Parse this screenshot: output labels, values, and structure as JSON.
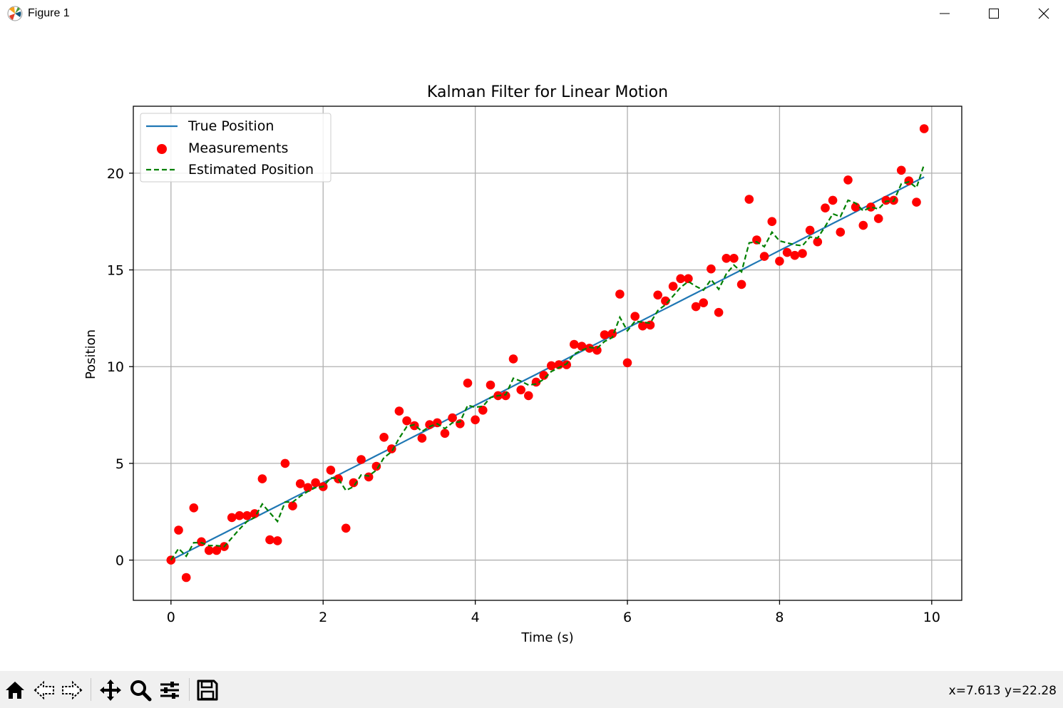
{
  "window": {
    "title": "Figure 1"
  },
  "toolbar": {
    "tools": [
      "home-icon",
      "back-icon",
      "forward-icon",
      "pan-icon",
      "zoom-icon",
      "configure-subplots-icon",
      "save-icon"
    ],
    "coords_readout": "x=7.613 y=22.28"
  },
  "colors": {
    "true_line": "#1f77b4",
    "measurements": "#ff0000",
    "estimate": "#008000",
    "grid": "#b0b0b0"
  },
  "chart_data": {
    "type": "line",
    "title": "Kalman Filter for Linear Motion",
    "xlabel": "Time (s)",
    "ylabel": "Position",
    "xlim": [
      -0.495,
      10.395
    ],
    "ylim": [
      -2.08,
      23.46
    ],
    "xticks": [
      0,
      2,
      4,
      6,
      8,
      10
    ],
    "yticks": [
      0,
      5,
      10,
      15,
      20
    ],
    "grid": true,
    "legend_position": "upper-left",
    "x": [
      0.0,
      0.1,
      0.2,
      0.3,
      0.4,
      0.5,
      0.6,
      0.7,
      0.8,
      0.9,
      1.0,
      1.1,
      1.2,
      1.3,
      1.4,
      1.5,
      1.6,
      1.7,
      1.8,
      1.9,
      2.0,
      2.1,
      2.2,
      2.3,
      2.4,
      2.5,
      2.6,
      2.7,
      2.8,
      2.9,
      3.0,
      3.1,
      3.2,
      3.3,
      3.4,
      3.5,
      3.6,
      3.7,
      3.8,
      3.9,
      4.0,
      4.1,
      4.2,
      4.3,
      4.4,
      4.5,
      4.6,
      4.7,
      4.8,
      4.9,
      5.0,
      5.1,
      5.2,
      5.3,
      5.4,
      5.5,
      5.6,
      5.7,
      5.8,
      5.9,
      6.0,
      6.1,
      6.2,
      6.3,
      6.4,
      6.5,
      6.6,
      6.7,
      6.8,
      6.9,
      7.0,
      7.1,
      7.2,
      7.3,
      7.4,
      7.5,
      7.6,
      7.7,
      7.8,
      7.9,
      8.0,
      8.1,
      8.2,
      8.3,
      8.4,
      8.5,
      8.6,
      8.7,
      8.8,
      8.9,
      9.0,
      9.1,
      9.2,
      9.3,
      9.4,
      9.5,
      9.6,
      9.7,
      9.8,
      9.9
    ],
    "series": [
      {
        "name": "True Position",
        "style": "solid",
        "values": [
          0.0,
          0.2,
          0.4,
          0.6,
          0.8,
          1.0,
          1.2,
          1.4,
          1.6,
          1.8,
          2.0,
          2.2,
          2.4,
          2.6,
          2.8,
          3.0,
          3.2,
          3.4,
          3.6,
          3.8,
          4.0,
          4.2,
          4.4,
          4.6,
          4.8,
          5.0,
          5.2,
          5.4,
          5.6,
          5.8,
          6.0,
          6.2,
          6.4,
          6.6,
          6.8,
          7.0,
          7.2,
          7.4,
          7.6,
          7.8,
          8.0,
          8.2,
          8.4,
          8.6,
          8.8,
          9.0,
          9.2,
          9.4,
          9.6,
          9.8,
          10.0,
          10.2,
          10.4,
          10.6,
          10.8,
          11.0,
          11.2,
          11.4,
          11.6,
          11.8,
          12.0,
          12.2,
          12.4,
          12.6,
          12.8,
          13.0,
          13.2,
          13.4,
          13.6,
          13.8,
          14.0,
          14.2,
          14.4,
          14.6,
          14.8,
          15.0,
          15.2,
          15.4,
          15.6,
          15.8,
          16.0,
          16.2,
          16.4,
          16.6,
          16.8,
          17.0,
          17.2,
          17.4,
          17.6,
          17.8,
          18.0,
          18.2,
          18.4,
          18.6,
          18.8,
          19.0,
          19.2,
          19.4,
          19.6,
          19.8
        ]
      },
      {
        "name": "Measurements",
        "style": "scatter",
        "values": [
          0.0,
          1.55,
          -0.9,
          2.7,
          0.95,
          0.5,
          0.5,
          0.7,
          2.2,
          2.3,
          2.3,
          2.4,
          4.2,
          1.05,
          1.0,
          5.0,
          2.8,
          3.95,
          3.75,
          4.0,
          3.8,
          4.65,
          4.2,
          1.65,
          4.0,
          5.2,
          4.3,
          4.85,
          6.35,
          5.75,
          7.7,
          7.2,
          6.95,
          6.3,
          7.0,
          7.1,
          6.55,
          7.35,
          7.05,
          9.15,
          7.25,
          7.75,
          9.05,
          8.5,
          8.5,
          10.4,
          8.8,
          8.5,
          9.2,
          9.55,
          10.05,
          10.1,
          10.1,
          11.15,
          11.05,
          10.95,
          10.85,
          11.65,
          11.7,
          13.75,
          10.2,
          12.6,
          12.1,
          12.15,
          13.7,
          13.4,
          14.15,
          14.55,
          14.55,
          13.1,
          13.3,
          15.05,
          12.8,
          15.6,
          15.6,
          14.25,
          18.65,
          16.55,
          15.7,
          17.5,
          15.45,
          15.9,
          15.75,
          15.85,
          17.05,
          16.45,
          18.2,
          18.6,
          16.95,
          19.65,
          18.25,
          17.3,
          18.25,
          17.65,
          18.6,
          18.6,
          20.15,
          19.6,
          18.5,
          22.3
        ]
      },
      {
        "name": "Estimated Position",
        "style": "dashed",
        "values": [
          0.0,
          0.6,
          0.2,
          0.9,
          0.9,
          0.75,
          0.75,
          0.7,
          1.15,
          1.6,
          2.0,
          2.2,
          2.9,
          2.45,
          2.0,
          3.0,
          3.0,
          3.3,
          3.55,
          3.75,
          3.8,
          4.25,
          4.2,
          3.6,
          3.8,
          4.4,
          4.35,
          4.65,
          5.3,
          5.6,
          6.3,
          6.9,
          7.0,
          6.65,
          6.9,
          7.05,
          6.8,
          7.1,
          7.15,
          8.0,
          7.9,
          7.95,
          8.4,
          8.5,
          8.55,
          9.4,
          9.25,
          9.05,
          9.1,
          9.35,
          9.75,
          9.95,
          10.15,
          10.65,
          10.85,
          11.0,
          10.95,
          11.3,
          11.5,
          12.55,
          11.85,
          12.35,
          12.3,
          12.25,
          12.9,
          13.2,
          13.65,
          14.1,
          14.4,
          14.15,
          13.95,
          14.5,
          14.0,
          14.8,
          15.25,
          14.9,
          16.4,
          16.45,
          16.2,
          16.95,
          16.5,
          16.4,
          16.3,
          16.25,
          16.7,
          16.65,
          17.25,
          17.9,
          17.75,
          18.6,
          18.45,
          18.05,
          18.25,
          18.15,
          18.55,
          18.55,
          19.45,
          19.55,
          19.25,
          20.45
        ]
      }
    ]
  }
}
